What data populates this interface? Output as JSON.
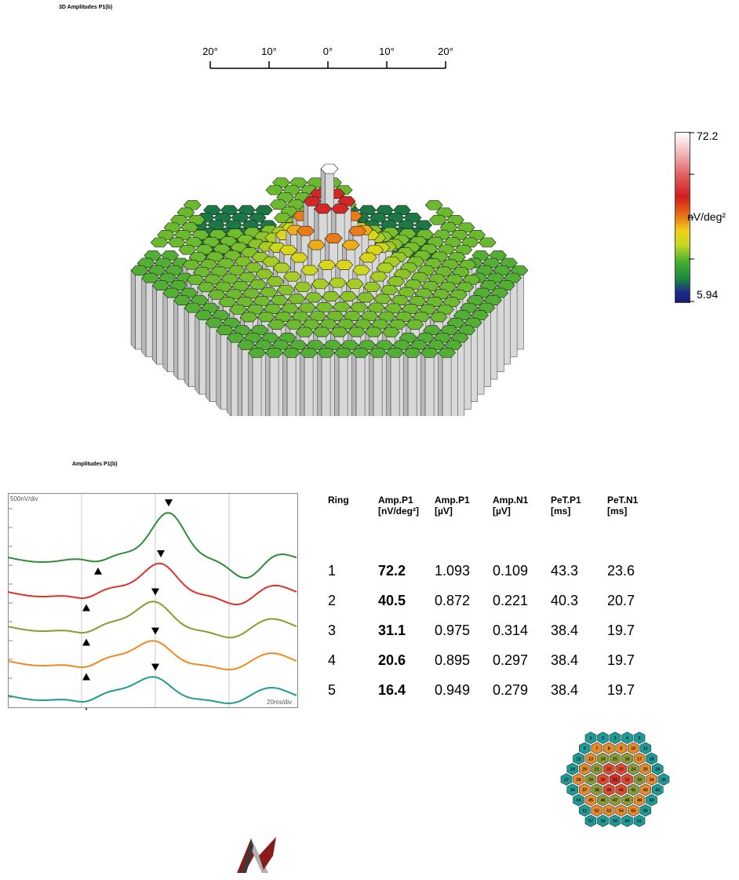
{
  "top_title": "3D Amplitudes P1(b)",
  "scale": {
    "labels": [
      "20°",
      "10°",
      "0°",
      "10°",
      "20°"
    ]
  },
  "colorbar": {
    "max": "72.2",
    "unit": "nV/deg²",
    "min": "5.94"
  },
  "trace_title": "Amplitudes P1(b)",
  "trace_plot": {
    "y_scale_label": "500nV/div",
    "x_scale_label": "20ms/div"
  },
  "table": {
    "headers": [
      [
        "Ring",
        ""
      ],
      [
        "Amp.P1",
        "[nV/deg²]"
      ],
      [
        "Amp.P1",
        "[µV]"
      ],
      [
        "Amp.N1",
        "[µV]"
      ],
      [
        "PeT.P1",
        "[ms]"
      ],
      [
        "PeT.N1",
        "[ms]"
      ]
    ],
    "rows": [
      [
        "1",
        "72.2",
        "1.093",
        "0.109",
        "43.3",
        "23.6"
      ],
      [
        "2",
        "40.5",
        "0.872",
        "0.221",
        "40.3",
        "20.7"
      ],
      [
        "3",
        "31.1",
        "0.975",
        "0.314",
        "38.4",
        "19.7"
      ],
      [
        "4",
        "20.6",
        "0.895",
        "0.297",
        "38.4",
        "19.7"
      ],
      [
        "5",
        "16.4",
        "0.949",
        "0.279",
        "38.4",
        "19.7"
      ]
    ]
  },
  "hex_map": {
    "rows": [
      [
        "1",
        "2",
        "3",
        "4",
        "5"
      ],
      [
        "6",
        "7",
        "8",
        "9",
        "10",
        "11"
      ],
      [
        "12",
        "13",
        "14",
        "15",
        "16",
        "17",
        "18"
      ],
      [
        "19",
        "20",
        "21",
        "22",
        "23",
        "24",
        "25",
        "26"
      ],
      [
        "27",
        "28",
        "29",
        "30",
        "31",
        "32",
        "33",
        "34",
        "35"
      ],
      [
        "36",
        "37",
        "38",
        "39",
        "40",
        "41",
        "42",
        "43"
      ],
      [
        "44",
        "45",
        "46",
        "47",
        "48",
        "49",
        "50"
      ],
      [
        "51",
        "52",
        "53",
        "54",
        "55",
        "56"
      ],
      [
        "57",
        "58",
        "59",
        "60",
        "61"
      ]
    ],
    "ring_colors": {
      "1": "#d42a1f",
      "2": "#e8462a",
      "3": "#8f9a34",
      "4": "#e8892a",
      "5": "#1f9a97"
    }
  },
  "chart_data": {
    "type": "line",
    "title": "Amplitudes P1(b)",
    "series": [
      {
        "name": "1",
        "color": "#2e8b3a"
      },
      {
        "name": "2",
        "color": "#e0302a"
      },
      {
        "name": "3",
        "color": "#8a9a2c"
      },
      {
        "name": "4",
        "color": "#f08a20"
      },
      {
        "name": "5",
        "color": "#1f9a97"
      }
    ],
    "ring_values": [
      {
        "ring": 1,
        "amp_p1_nv_deg2": 72.2,
        "amp_p1_uv": 1.093,
        "amp_n1_uv": 0.109,
        "pet_p1_ms": 43.3,
        "pet_n1_ms": 23.6
      },
      {
        "ring": 2,
        "amp_p1_nv_deg2": 40.5,
        "amp_p1_uv": 0.872,
        "amp_n1_uv": 0.221,
        "pet_p1_ms": 40.3,
        "pet_n1_ms": 20.7
      },
      {
        "ring": 3,
        "amp_p1_nv_deg2": 31.1,
        "amp_p1_uv": 0.975,
        "amp_n1_uv": 0.314,
        "pet_p1_ms": 38.4,
        "pet_n1_ms": 19.7
      },
      {
        "ring": 4,
        "amp_p1_nv_deg2": 20.6,
        "amp_p1_uv": 0.895,
        "amp_n1_uv": 0.297,
        "pet_p1_ms": 38.4,
        "pet_n1_ms": 19.7
      },
      {
        "ring": 5,
        "amp_p1_nv_deg2": 16.4,
        "amp_p1_uv": 0.949,
        "amp_n1_uv": 0.279,
        "pet_p1_ms": 38.4,
        "pet_n1_ms": 19.7
      }
    ]
  }
}
